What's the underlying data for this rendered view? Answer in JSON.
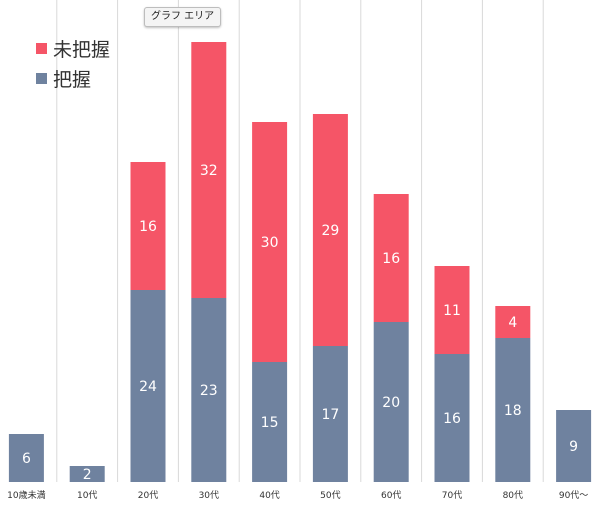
{
  "tooltip": "グラフ エリア",
  "colors": {
    "unknown": "#f55567",
    "known": "#6f829f",
    "grid": "#d9d9d9"
  },
  "chart_data": {
    "type": "bar",
    "stacked": true,
    "categories": [
      "10歳未満",
      "10代",
      "20代",
      "30代",
      "40代",
      "50代",
      "60代",
      "70代",
      "80代",
      "90代〜"
    ],
    "series": [
      {
        "name": "把握",
        "color": "#6f829f",
        "values": [
          6,
          2,
          24,
          23,
          15,
          17,
          20,
          16,
          18,
          9
        ]
      },
      {
        "name": "未把握",
        "color": "#f55567",
        "values": [
          0,
          0,
          16,
          32,
          30,
          29,
          16,
          11,
          4,
          0
        ]
      }
    ],
    "ylim": [
      0,
      60
    ],
    "legend": {
      "position": "top-left",
      "order": [
        "未把握",
        "把握"
      ]
    },
    "grid": "vertical"
  }
}
